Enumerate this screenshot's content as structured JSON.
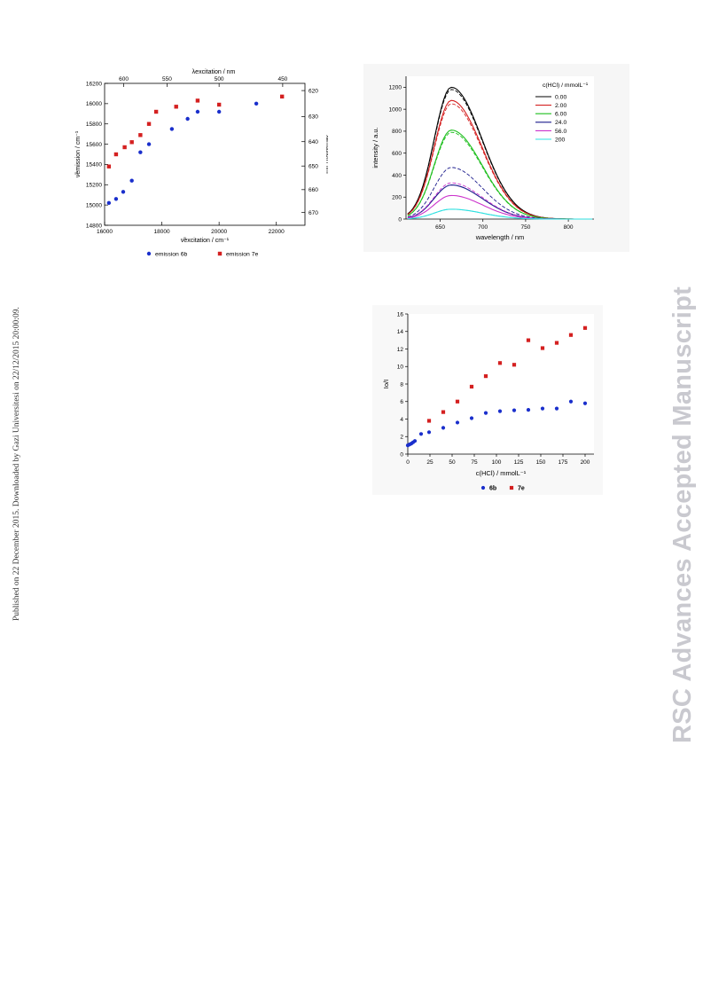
{
  "sidebar_note": "Published on 22 December 2015. Downloaded by Gazi Universitesi on 22/12/2015 20:00:09.",
  "watermark": "RSC Advances Accepted Manuscript",
  "chart_data": [
    {
      "type": "scatter",
      "xlabel": "ν̃excitation / cm⁻¹",
      "ylabel": "ν̃emission / cm⁻¹",
      "x2label": "λexcitation / nm",
      "y2label": "λemission / nm",
      "xlim": [
        16000,
        23000
      ],
      "ylim": [
        14800,
        16200
      ],
      "x_ticks": [
        16000,
        18000,
        20000,
        22000
      ],
      "y_ticks": [
        14800,
        15000,
        15200,
        15400,
        15600,
        15800,
        16000,
        16200
      ],
      "x2_ticks": [
        600,
        550,
        500,
        450
      ],
      "y2_ticks": [
        620,
        630,
        640,
        650,
        660,
        670
      ],
      "legend_position": "bottom",
      "series": [
        {
          "name": "emission 6b",
          "color": "#1a2fcc",
          "marker": "circle",
          "x": [
            16150,
            16400,
            16650,
            16950,
            17250,
            17550,
            18350,
            18900,
            19250,
            20000,
            21300
          ],
          "y": [
            15020,
            15060,
            15130,
            15240,
            15520,
            15600,
            15750,
            15850,
            15920,
            15920,
            16000
          ]
        },
        {
          "name": "emission 7e",
          "color": "#d42020",
          "marker": "square",
          "x": [
            16150,
            16400,
            16700,
            16950,
            17250,
            17550,
            17800,
            18500,
            19250,
            20000,
            22200
          ],
          "y": [
            15380,
            15500,
            15570,
            15620,
            15690,
            15800,
            15920,
            15970,
            16030,
            15990,
            16070
          ]
        }
      ]
    },
    {
      "type": "line",
      "xlabel": "wavelength / nm",
      "ylabel": "intensity / a.u.",
      "xlim": [
        610,
        830
      ],
      "ylim": [
        0,
        1300
      ],
      "x_ticks": [
        650,
        700,
        750,
        800
      ],
      "y_ticks": [
        0,
        200,
        400,
        600,
        800,
        1000,
        1200
      ],
      "legend_title": "c(HCl) / mmolL⁻¹",
      "legend_position": "top-right",
      "series": [
        {
          "name": "0.00",
          "color": "#000000",
          "peak_x": 663,
          "peak_solid": 1200,
          "peak_dashed": 1180
        },
        {
          "name": "2.00",
          "color": "#d42020",
          "peak_x": 663,
          "peak_solid": 1080,
          "peak_dashed": 1050
        },
        {
          "name": "6.00",
          "color": "#1fbf1f",
          "peak_x": 663,
          "peak_solid": 810,
          "peak_dashed": 790
        },
        {
          "name": "24.0",
          "color": "#1a1a8c",
          "peak_x": 663,
          "peak_solid": 310,
          "peak_dashed": 470
        },
        {
          "name": "56.0",
          "color": "#cc33cc",
          "peak_x": 663,
          "peak_solid": 215,
          "peak_dashed": 330
        },
        {
          "name": "200",
          "color": "#2ee0e0",
          "peak_x": 663,
          "peak_solid": 90,
          "peak_dashed": 90
        }
      ]
    },
    {
      "type": "scatter",
      "xlabel": "c(HCl) / mmolL⁻¹",
      "ylabel": "Io/I",
      "xlim": [
        0,
        210
      ],
      "ylim": [
        0,
        16
      ],
      "x_ticks": [
        0,
        25,
        50,
        75,
        100,
        125,
        150,
        175,
        200
      ],
      "y_ticks": [
        0,
        2,
        4,
        6,
        8,
        10,
        12,
        14,
        16
      ],
      "legend_position": "bottom",
      "series": [
        {
          "name": "6b",
          "color": "#1a2fcc",
          "marker": "circle",
          "x": [
            0,
            2,
            4,
            6,
            8,
            15,
            24,
            40,
            56,
            72,
            88,
            104,
            120,
            136,
            152,
            168,
            184,
            200
          ],
          "y": [
            1.0,
            1.1,
            1.2,
            1.35,
            1.5,
            2.3,
            2.5,
            3.0,
            3.6,
            4.1,
            4.7,
            4.9,
            5.0,
            5.05,
            5.2,
            5.2,
            6.0,
            5.8
          ]
        },
        {
          "name": "7e",
          "color": "#d42020",
          "marker": "square",
          "x": [
            24,
            40,
            56,
            72,
            88,
            104,
            120,
            136,
            152,
            168,
            184,
            200
          ],
          "y": [
            3.8,
            4.8,
            6.0,
            7.7,
            8.9,
            10.4,
            10.2,
            13.0,
            12.1,
            12.7,
            13.6,
            14.4
          ]
        }
      ]
    }
  ]
}
